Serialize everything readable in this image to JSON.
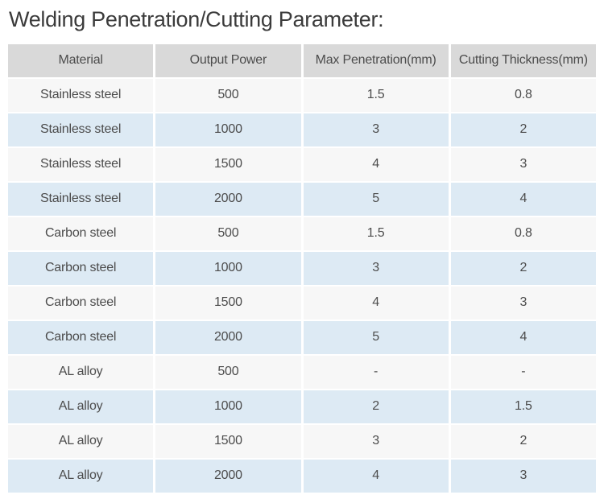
{
  "page": {
    "title": "Welding Penetration/Cutting Parameter:"
  },
  "table": {
    "columns": [
      "Material",
      "Output Power",
      "Max Penetration(mm)",
      "Cutting Thickness(mm)"
    ],
    "rows": [
      [
        "Stainless steel",
        "500",
        "1.5",
        "0.8"
      ],
      [
        "Stainless steel",
        "1000",
        "3",
        "2"
      ],
      [
        "Stainless steel",
        "1500",
        "4",
        "3"
      ],
      [
        "Stainless steel",
        "2000",
        "5",
        "4"
      ],
      [
        "Carbon steel",
        "500",
        "1.5",
        "0.8"
      ],
      [
        "Carbon steel",
        "1000",
        "3",
        "2"
      ],
      [
        "Carbon steel",
        "1500",
        "4",
        "3"
      ],
      [
        "Carbon steel",
        "2000",
        "5",
        "4"
      ],
      [
        "AL alloy",
        "500",
        "-",
        "-"
      ],
      [
        "AL alloy",
        "1000",
        "2",
        "1.5"
      ],
      [
        "AL alloy",
        "1500",
        "3",
        "2"
      ],
      [
        "AL alloy",
        "2000",
        "4",
        "3"
      ]
    ]
  },
  "colors": {
    "header_bg": "#d9d9d9",
    "row_light_bg": "#f7f7f7",
    "row_blue_bg": "#ddeaf4",
    "cell_text": "#4c4c4c",
    "title_text": "#3b3b3b",
    "page_bg": "#ffffff"
  }
}
